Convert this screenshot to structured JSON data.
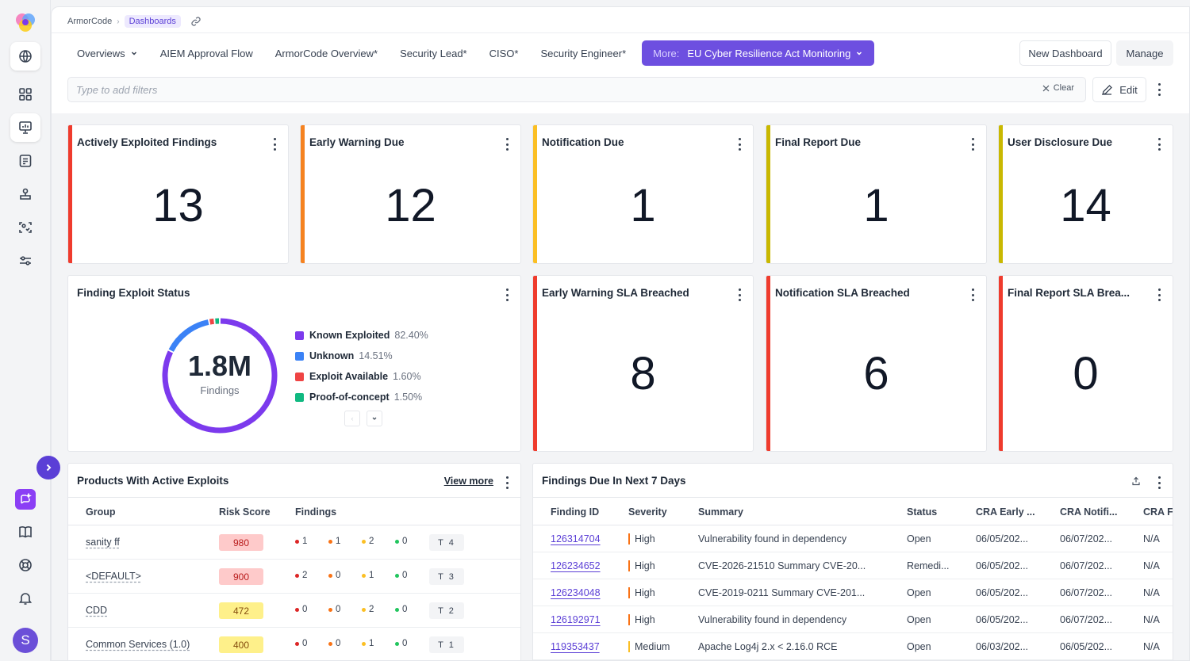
{
  "breadcrumb": {
    "root": "ArmorCode",
    "current": "Dashboards"
  },
  "tabs": [
    {
      "label": "Overviews"
    },
    {
      "label": "AIEM Approval Flow"
    },
    {
      "label": "ArmorCode Overview*"
    },
    {
      "label": "Security Lead*"
    },
    {
      "label": "CISO*"
    },
    {
      "label": "Security Engineer*"
    }
  ],
  "active_tab": {
    "prefix": "More:",
    "label": "EU Cyber Resilience Act Monitoring"
  },
  "toolbar": {
    "new_dashboard": "New Dashboard",
    "manage": "Manage",
    "edit": "Edit",
    "clear": "Clear"
  },
  "filter": {
    "placeholder": "Type to add filters"
  },
  "colors": {
    "accent": "#6d4fe0",
    "red": "#ef3b2d",
    "orange": "#f58220",
    "amber": "#fbbf24",
    "olive": "#c9b800"
  },
  "stat_cards": [
    {
      "title": "Actively Exploited Findings",
      "value": "13"
    },
    {
      "title": "Early Warning Due",
      "value": "12"
    },
    {
      "title": "Notification Due",
      "value": "1"
    },
    {
      "title": "Final Report Due",
      "value": "1"
    },
    {
      "title": "User Disclosure Due",
      "value": "14"
    }
  ],
  "sla_cards": [
    {
      "title": "Early Warning SLA Breached",
      "value": "8"
    },
    {
      "title": "Notification SLA Breached",
      "value": "6"
    },
    {
      "title": "Final Report SLA Brea...",
      "value": "0"
    }
  ],
  "exploit_status": {
    "title": "Finding Exploit Status",
    "center_value": "1.8M",
    "center_label": "Findings"
  },
  "chart_data": {
    "type": "pie",
    "categories": [
      "Known Exploited",
      "Unknown",
      "Exploit Available",
      "Proof-of-concept"
    ],
    "values": [
      82.4,
      14.51,
      1.6,
      1.5
    ],
    "value_labels": [
      "82.40%",
      "14.51%",
      "1.60%",
      "1.50%"
    ],
    "colors": [
      "#7c3aed",
      "#3b82f6",
      "#ef4444",
      "#10b981"
    ],
    "legend": "right"
  },
  "products": {
    "title": "Products With Active Exploits",
    "view_more": "View more",
    "columns": [
      "Group",
      "Risk Score",
      "Findings"
    ],
    "rows": [
      {
        "group": "sanity ff",
        "risk": "980",
        "c": "1",
        "h": "1",
        "m": "2",
        "l": "0",
        "t": "T 4"
      },
      {
        "group": "<DEFAULT>",
        "risk": "900",
        "c": "2",
        "h": "0",
        "m": "1",
        "l": "0",
        "t": "T 3"
      },
      {
        "group": "CDD",
        "risk": "472",
        "c": "0",
        "h": "0",
        "m": "2",
        "l": "0",
        "t": "T 2"
      },
      {
        "group": "Common Services (1.0)",
        "risk": "400",
        "c": "0",
        "h": "0",
        "m": "1",
        "l": "0",
        "t": "T 1"
      }
    ]
  },
  "findings_due": {
    "title": "Findings Due In Next 7 Days",
    "columns": [
      "Finding ID",
      "Severity",
      "Summary",
      "Status",
      "CRA Early ...",
      "CRA Notifi...",
      "CRA F"
    ],
    "rows": [
      {
        "id": "126314704",
        "severity": "High",
        "summary": "Vulnerability found in dependency",
        "status": "Open",
        "early": "06/05/202...",
        "notif": "06/07/202...",
        "final": "N/A"
      },
      {
        "id": "126234652",
        "severity": "High",
        "summary": "CVE-2026-21510 Summary CVE-20...",
        "status": "Remedi...",
        "early": "06/05/202...",
        "notif": "06/07/202...",
        "final": "N/A"
      },
      {
        "id": "126234048",
        "severity": "High",
        "summary": "CVE-2019-0211 Summary CVE-201...",
        "status": "Open",
        "early": "06/05/202...",
        "notif": "06/07/202...",
        "final": "N/A"
      },
      {
        "id": "126192971",
        "severity": "High",
        "summary": "Vulnerability found in dependency",
        "status": "Open",
        "early": "06/05/202...",
        "notif": "06/07/202...",
        "final": "N/A"
      },
      {
        "id": "119353437",
        "severity": "Medium",
        "summary": "Apache Log4j 2.x < 2.16.0 RCE",
        "status": "Open",
        "early": "06/03/202...",
        "notif": "06/05/202...",
        "final": "N/A"
      }
    ]
  },
  "user": {
    "initial": "S"
  }
}
